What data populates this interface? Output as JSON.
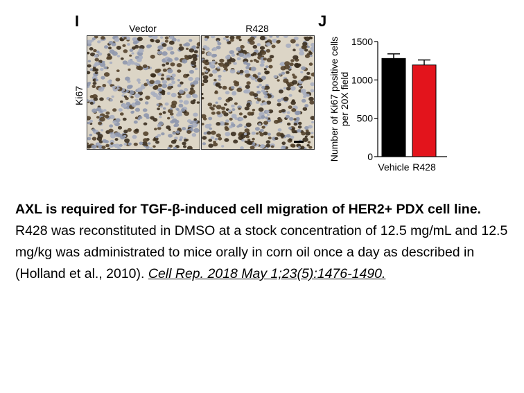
{
  "panel_i": {
    "letter": "I",
    "columns": [
      "Vector",
      "R428"
    ],
    "row_label": "Ki67"
  },
  "panel_j": {
    "letter": "J"
  },
  "chart_data": {
    "type": "bar",
    "categories": [
      "Vehicle",
      "R428"
    ],
    "values": [
      1280,
      1195
    ],
    "errors": [
      60,
      65
    ],
    "colors": [
      "#000000",
      "#e3141c"
    ],
    "ylabel": "Number of Ki67 positive cells per 20X field",
    "ylim": [
      0,
      1500
    ],
    "yticks": [
      0,
      500,
      1000,
      1500
    ],
    "grid": false
  },
  "caption": {
    "title": "AXL is required for TGF-β-induced cell migration of HER2+ PDX cell line.",
    "body": "R428 was reconstituted in DMSO at a stock concentration of 12.5 mg/mL and 12.5 mg/kg was administrated to mice orally in corn oil once a day as described in (Holland et al., 2010). ",
    "citation": "Cell Rep. 2018 May 1;23(5):1476-1490."
  }
}
